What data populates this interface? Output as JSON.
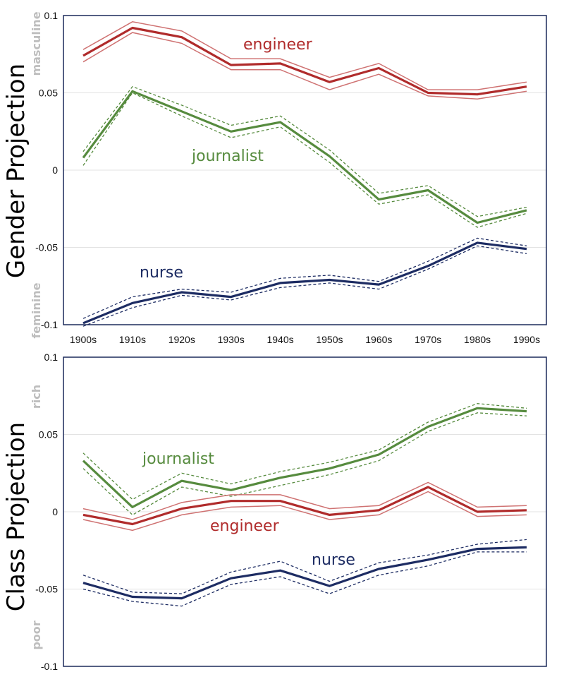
{
  "chart_data": [
    {
      "type": "line",
      "ylabel": "Gender Projection",
      "pole_high": "masculine",
      "pole_low": "feminine",
      "ylim": [
        -0.1,
        0.1
      ],
      "ytick_labels": [
        "0.1",
        "0.05",
        "0",
        "-0.05",
        "-0.1"
      ],
      "yticks": [
        0.1,
        0.05,
        0,
        -0.05,
        -0.1
      ],
      "x": [
        "1900s",
        "1910s",
        "1920s",
        "1930s",
        "1940s",
        "1950s",
        "1960s",
        "1970s",
        "1980s",
        "1990s"
      ],
      "show_xticks": true,
      "series": [
        {
          "name": "engineer",
          "color": "#b02b2b",
          "band_color": "#cf7272",
          "band_style": "solid",
          "values": [
            0.074,
            0.092,
            0.086,
            0.068,
            0.069,
            0.057,
            0.066,
            0.05,
            0.049,
            0.054
          ],
          "upper": [
            0.078,
            0.096,
            0.09,
            0.072,
            0.072,
            0.06,
            0.069,
            0.052,
            0.052,
            0.057
          ],
          "lower": [
            0.07,
            0.089,
            0.082,
            0.065,
            0.065,
            0.052,
            0.062,
            0.048,
            0.046,
            0.051
          ]
        },
        {
          "name": "journalist",
          "color": "#568b3e",
          "band_color": "#568b3e",
          "band_style": "dashed",
          "values": [
            0.008,
            0.051,
            0.038,
            0.025,
            0.031,
            0.009,
            -0.019,
            -0.013,
            -0.034,
            -0.026
          ],
          "upper": [
            0.012,
            0.054,
            0.042,
            0.029,
            0.035,
            0.013,
            -0.015,
            -0.01,
            -0.03,
            -0.024
          ],
          "lower": [
            0.003,
            0.05,
            0.035,
            0.021,
            0.028,
            0.005,
            -0.022,
            -0.016,
            -0.037,
            -0.028
          ]
        },
        {
          "name": "nurse",
          "color": "#1d2c63",
          "band_color": "#1d2c63",
          "band_style": "dashed",
          "values": [
            -0.099,
            -0.086,
            -0.079,
            -0.082,
            -0.073,
            -0.071,
            -0.074,
            -0.062,
            -0.047,
            -0.051
          ],
          "upper": [
            -0.096,
            -0.082,
            -0.077,
            -0.079,
            -0.07,
            -0.068,
            -0.072,
            -0.059,
            -0.044,
            -0.049
          ],
          "lower": [
            -0.101,
            -0.089,
            -0.081,
            -0.084,
            -0.076,
            -0.073,
            -0.077,
            -0.064,
            -0.049,
            -0.054
          ]
        }
      ]
    },
    {
      "type": "line",
      "ylabel": "Class Projection",
      "pole_high": "rich",
      "pole_low": "poor",
      "ylim": [
        -0.1,
        0.1
      ],
      "ytick_labels": [
        "0.1",
        "0.05",
        "0",
        "-0.05",
        "-0.1"
      ],
      "yticks": [
        0.1,
        0.05,
        0,
        -0.05,
        -0.1
      ],
      "x": [
        "1900s",
        "1910s",
        "1920s",
        "1930s",
        "1940s",
        "1950s",
        "1960s",
        "1970s",
        "1980s",
        "1990s"
      ],
      "show_xticks": false,
      "series": [
        {
          "name": "journalist",
          "color": "#568b3e",
          "band_color": "#568b3e",
          "band_style": "dashed",
          "values": [
            0.033,
            0.003,
            0.02,
            0.014,
            0.022,
            0.028,
            0.037,
            0.055,
            0.067,
            0.065
          ],
          "upper": [
            0.038,
            0.008,
            0.025,
            0.018,
            0.026,
            0.032,
            0.04,
            0.058,
            0.07,
            0.067
          ],
          "lower": [
            0.028,
            -0.002,
            0.016,
            0.01,
            0.017,
            0.024,
            0.033,
            0.052,
            0.064,
            0.062
          ]
        },
        {
          "name": "engineer",
          "color": "#b02b2b",
          "band_color": "#cf7272",
          "band_style": "solid",
          "values": [
            -0.002,
            -0.008,
            0.002,
            0.007,
            0.007,
            -0.002,
            0.001,
            0.016,
            0.0,
            0.001
          ],
          "upper": [
            0.002,
            -0.005,
            0.006,
            0.011,
            0.011,
            0.002,
            0.004,
            0.019,
            0.003,
            0.004
          ],
          "lower": [
            -0.005,
            -0.012,
            -0.002,
            0.003,
            0.004,
            -0.005,
            -0.002,
            0.013,
            -0.003,
            -0.002
          ]
        },
        {
          "name": "nurse",
          "color": "#1d2c63",
          "band_color": "#1d2c63",
          "band_style": "dashed",
          "values": [
            -0.046,
            -0.055,
            -0.056,
            -0.043,
            -0.038,
            -0.048,
            -0.037,
            -0.031,
            -0.024,
            -0.023
          ],
          "upper": [
            -0.041,
            -0.052,
            -0.053,
            -0.039,
            -0.032,
            -0.045,
            -0.033,
            -0.028,
            -0.021,
            -0.018
          ],
          "lower": [
            -0.05,
            -0.058,
            -0.061,
            -0.047,
            -0.042,
            -0.053,
            -0.041,
            -0.035,
            -0.026,
            -0.026
          ]
        }
      ]
    }
  ]
}
